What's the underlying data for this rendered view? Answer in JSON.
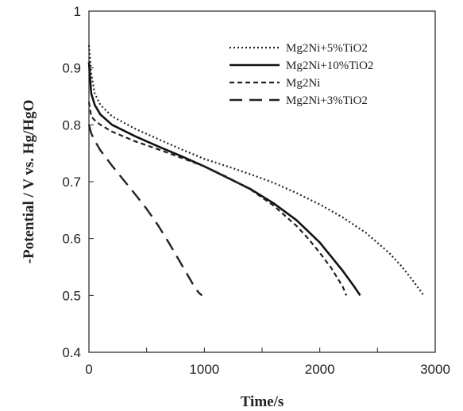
{
  "chart_data": {
    "type": "line",
    "xlabel": "Time/s",
    "ylabel": "-Potential / V vs. Hg/HgO",
    "xlim": [
      0,
      3000
    ],
    "ylim": [
      0.4,
      1.0
    ],
    "x_ticks": [
      "0",
      "1000",
      "2000",
      "3000"
    ],
    "y_ticks": [
      "0.4",
      "0.5",
      "0.6",
      "0.7",
      "0.8",
      "0.9",
      "1"
    ],
    "legend_position": "top-right",
    "grid": false,
    "series": [
      {
        "name": "Mg2Ni+5%TiO2",
        "line_style": "dotted",
        "color": "#222222",
        "x": [
          0,
          20,
          50,
          100,
          200,
          400,
          600,
          800,
          1000,
          1200,
          1400,
          1600,
          1800,
          2000,
          2200,
          2400,
          2600,
          2700,
          2800,
          2900
        ],
        "y": [
          0.94,
          0.89,
          0.855,
          0.835,
          0.815,
          0.793,
          0.775,
          0.757,
          0.74,
          0.727,
          0.713,
          0.698,
          0.68,
          0.66,
          0.637,
          0.61,
          0.575,
          0.553,
          0.528,
          0.5
        ]
      },
      {
        "name": "Mg2Ni+10%TiO2",
        "line_style": "solid",
        "color": "#111111",
        "x": [
          0,
          20,
          50,
          100,
          200,
          400,
          600,
          800,
          1000,
          1200,
          1400,
          1600,
          1800,
          2000,
          2100,
          2200,
          2300,
          2350
        ],
        "y": [
          0.91,
          0.855,
          0.835,
          0.818,
          0.8,
          0.78,
          0.762,
          0.745,
          0.727,
          0.707,
          0.687,
          0.662,
          0.632,
          0.593,
          0.568,
          0.543,
          0.515,
          0.5
        ]
      },
      {
        "name": "Mg2Ni",
        "line_style": "dashed",
        "color": "#222222",
        "x": [
          0,
          20,
          50,
          100,
          200,
          400,
          600,
          800,
          1000,
          1200,
          1400,
          1600,
          1800,
          1900,
          2000,
          2100,
          2200,
          2230
        ],
        "y": [
          0.84,
          0.815,
          0.808,
          0.8,
          0.788,
          0.771,
          0.757,
          0.742,
          0.727,
          0.708,
          0.686,
          0.658,
          0.622,
          0.6,
          0.575,
          0.548,
          0.515,
          0.5
        ]
      },
      {
        "name": "Mg2Ni+3%TiO2",
        "line_style": "long-dash",
        "color": "#222222",
        "x": [
          0,
          20,
          50,
          100,
          200,
          300,
          400,
          500,
          600,
          700,
          800,
          900,
          950,
          980
        ],
        "y": [
          0.8,
          0.785,
          0.772,
          0.755,
          0.728,
          0.703,
          0.678,
          0.652,
          0.623,
          0.59,
          0.555,
          0.52,
          0.505,
          0.5
        ]
      }
    ]
  }
}
